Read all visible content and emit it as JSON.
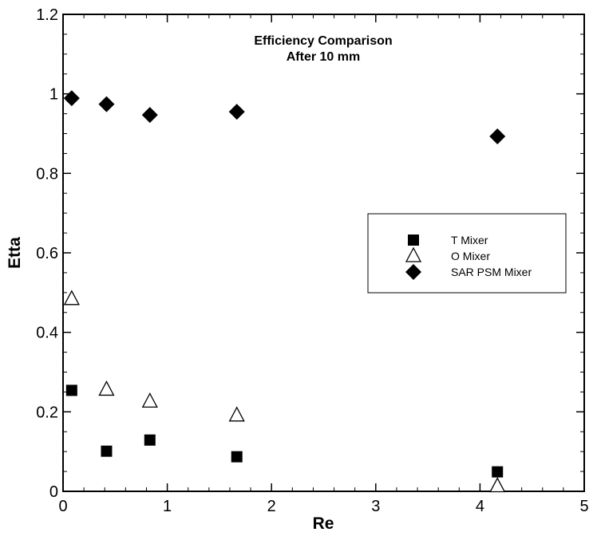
{
  "chart_data": {
    "type": "scatter",
    "title": "Efficiency Comparison",
    "subtitle": "After 10 mm",
    "xlabel": "Re",
    "ylabel": "Etta",
    "xlim": [
      0,
      5
    ],
    "ylim": [
      0,
      1.2
    ],
    "x_ticks": [
      "0",
      "1",
      "2",
      "3",
      "4",
      "5"
    ],
    "y_ticks": [
      "0",
      "0.2",
      "0.4",
      "0.6",
      "0.8",
      "1",
      "1.2"
    ],
    "grid": false,
    "legend_position": "right",
    "series": [
      {
        "name": "T Mixer",
        "marker": "filled-square",
        "color": "#000000",
        "points": [
          {
            "x": 0.083,
            "y": 0.254
          },
          {
            "x": 0.417,
            "y": 0.101
          },
          {
            "x": 0.833,
            "y": 0.129
          },
          {
            "x": 1.667,
            "y": 0.087
          },
          {
            "x": 4.167,
            "y": 0.049
          }
        ]
      },
      {
        "name": "O Mixer",
        "marker": "open-triangle",
        "color": "#000000",
        "points": [
          {
            "x": 0.083,
            "y": 0.484
          },
          {
            "x": 0.417,
            "y": 0.256
          },
          {
            "x": 0.833,
            "y": 0.226
          },
          {
            "x": 1.667,
            "y": 0.191
          },
          {
            "x": 4.167,
            "y": 0.013
          }
        ]
      },
      {
        "name": "SAR PSM Mixer",
        "marker": "filled-diamond",
        "color": "#000000",
        "points": [
          {
            "x": 0.083,
            "y": 0.989
          },
          {
            "x": 0.417,
            "y": 0.974
          },
          {
            "x": 0.833,
            "y": 0.947
          },
          {
            "x": 1.667,
            "y": 0.955
          },
          {
            "x": 4.167,
            "y": 0.893
          }
        ]
      }
    ]
  }
}
